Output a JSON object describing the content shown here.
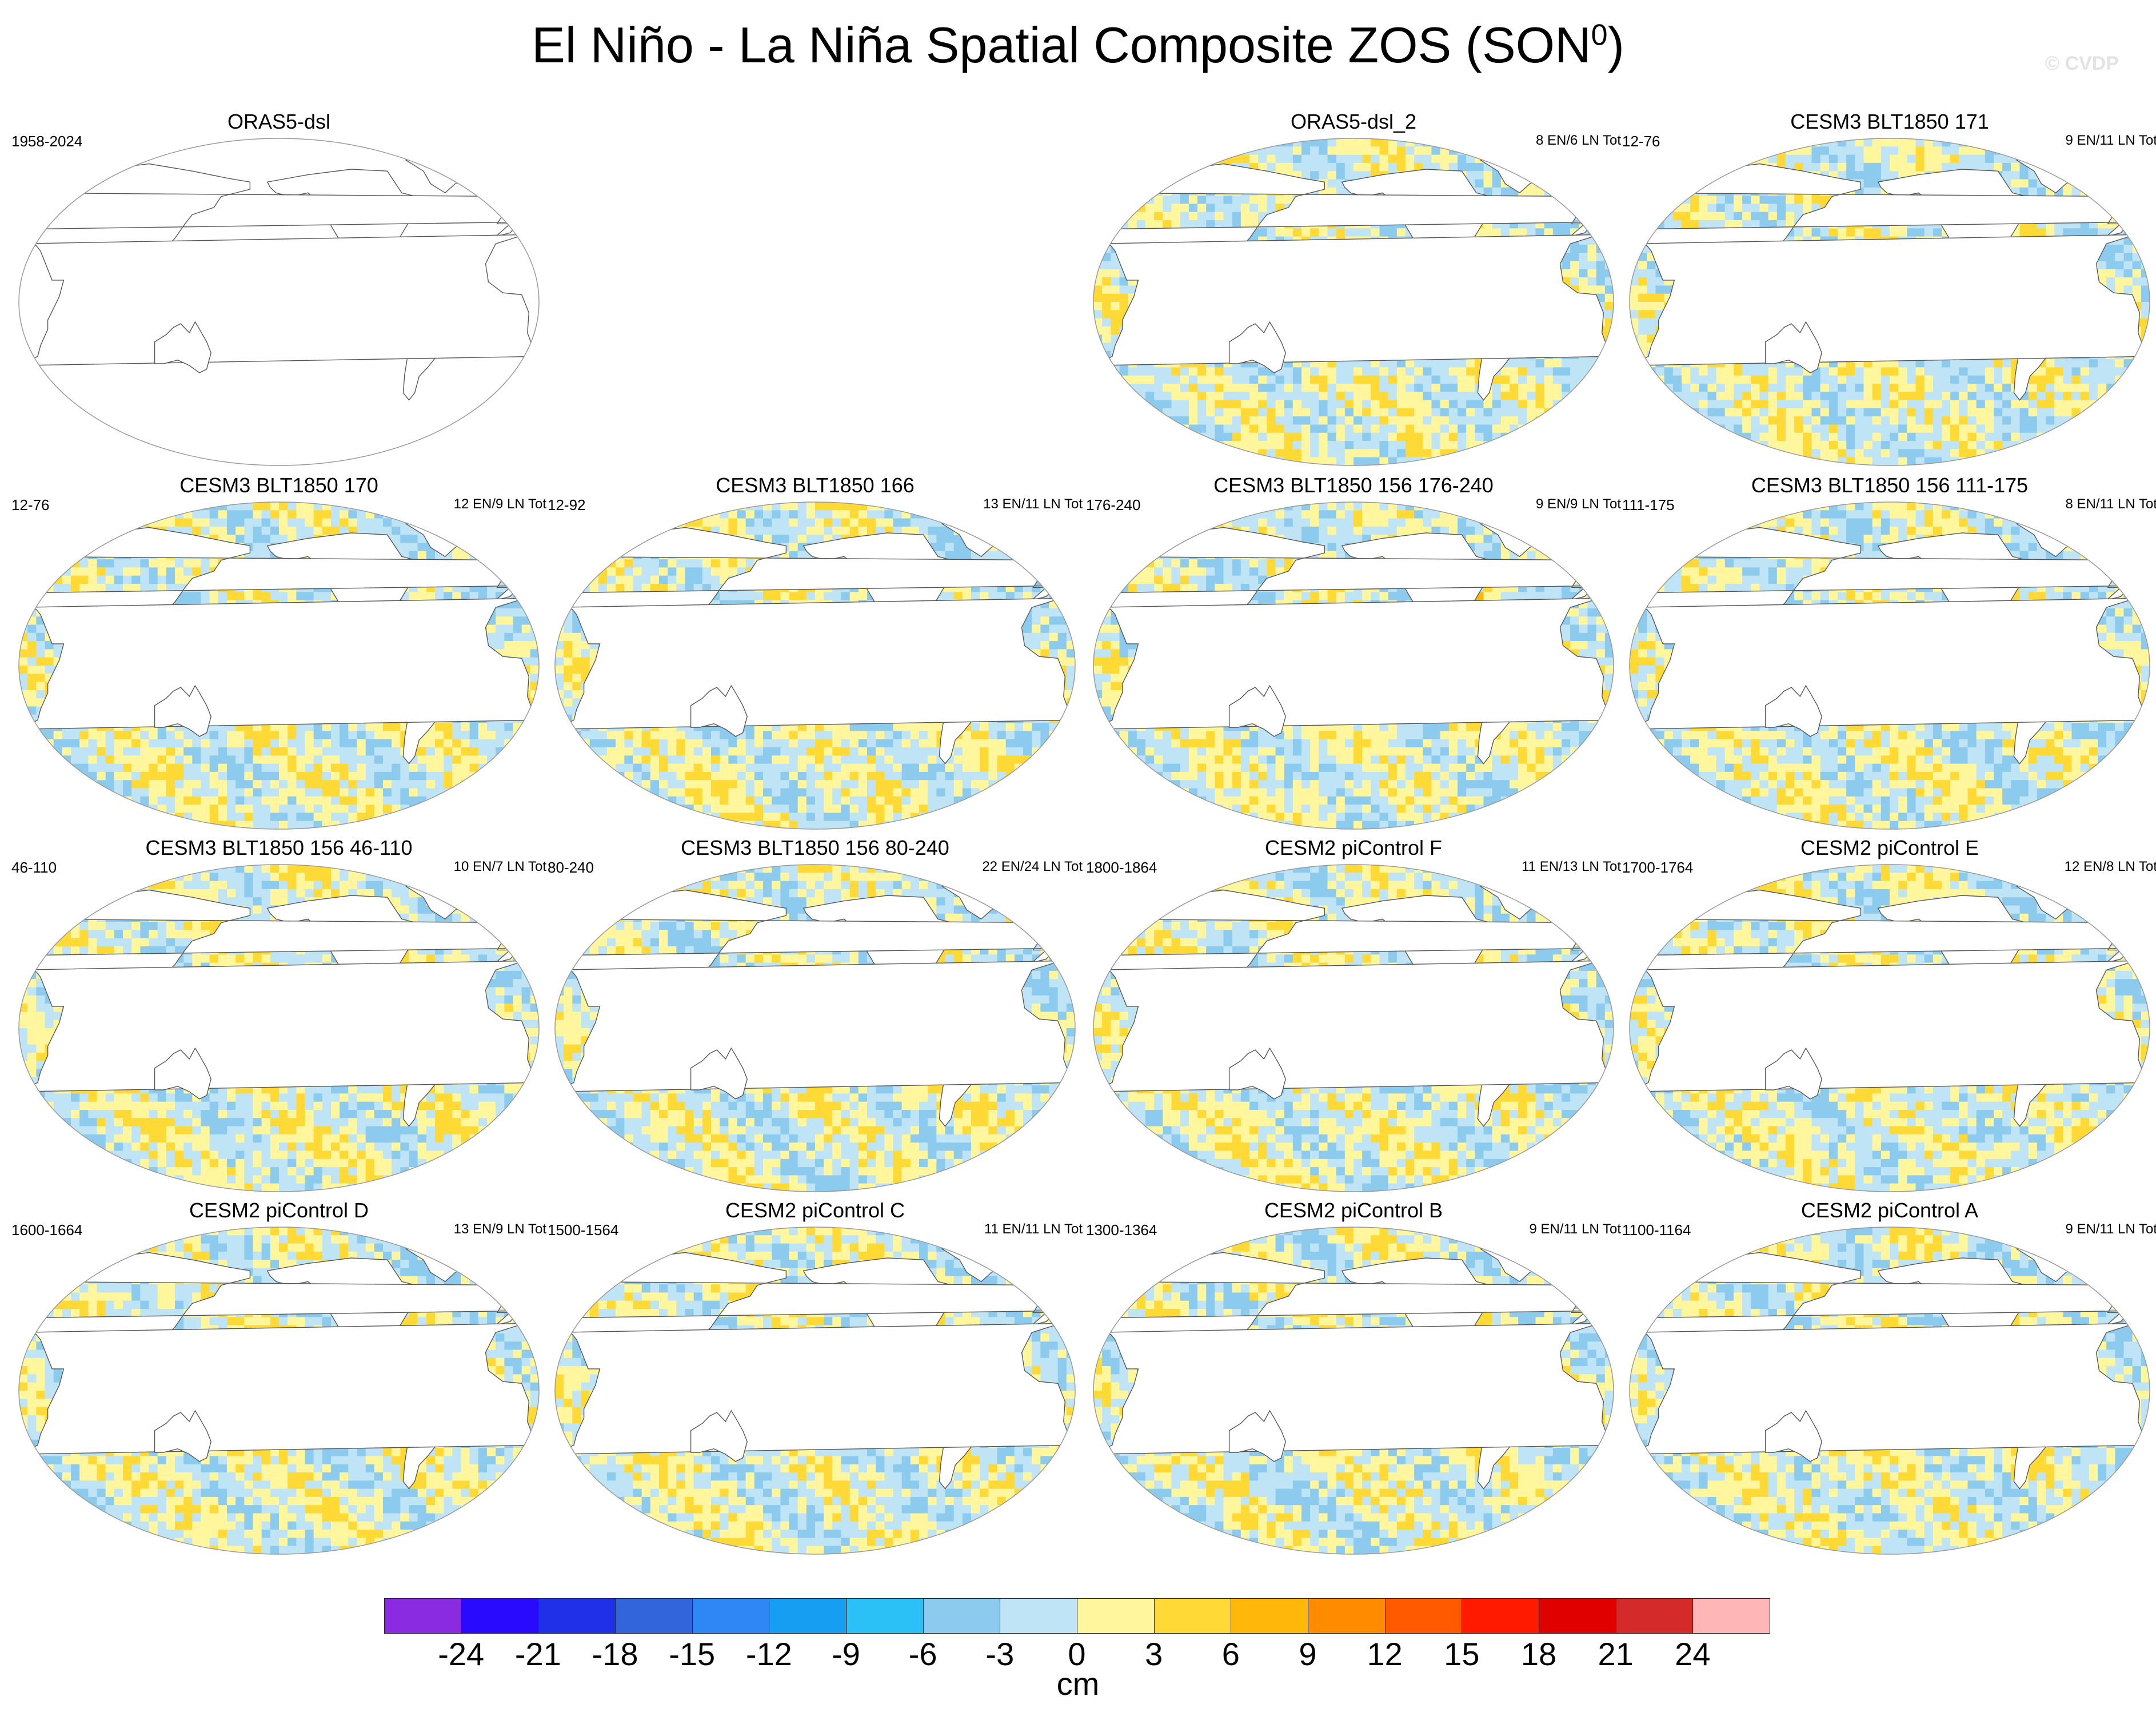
{
  "title": {
    "text": "El Niño - La Niña Spatial Composite ZOS (SON",
    "superscript": "0",
    "close": ")"
  },
  "watermark": "© CVDP",
  "colorbar": {
    "units": "cm",
    "labels": [
      "-24",
      "-21",
      "-18",
      "-15",
      "-12",
      "-9",
      "-6",
      "-3",
      "0",
      "3",
      "6",
      "9",
      "12",
      "15",
      "18",
      "21",
      "24"
    ],
    "colors": [
      "#8a2be2",
      "#2a0aff",
      "#2030e8",
      "#3264dc",
      "#2f86f5",
      "#159ef2",
      "#2bc0f6",
      "#8ccbee",
      "#bfe4f6",
      "#fff69d",
      "#ffda37",
      "#ffb70a",
      "#ff8c00",
      "#ff5a00",
      "#ff1a00",
      "#e00000",
      "#d42a2a",
      "#ffb6b6"
    ]
  },
  "panels": [
    {
      "title": "ORAS5-dsl",
      "years": "1958-2024",
      "count": "",
      "empty": true
    },
    {
      "title": "ORAS5-dsl_2",
      "years": "",
      "count": "8 EN/6 LN Tot",
      "empty": false,
      "amp": 1.2,
      "seed": 2
    },
    {
      "title": "CESM3 BLT1850 171",
      "years": "12-76",
      "count": "9 EN/11 LN Tot",
      "empty": false,
      "amp": 0.7,
      "seed": 3
    },
    {
      "title": "CESM3 BLT1850 170",
      "years": "12-76",
      "count": "12 EN/9 LN Tot",
      "empty": false,
      "amp": 0.75,
      "seed": 4
    },
    {
      "title": "CESM3 BLT1850 166",
      "years": "12-92",
      "count": "13 EN/11 LN Tot",
      "empty": false,
      "amp": 0.65,
      "seed": 5
    },
    {
      "title": "CESM3 BLT1850 156 176-240",
      "years": "176-240",
      "count": "9 EN/9 LN Tot",
      "empty": false,
      "amp": 0.75,
      "seed": 6
    },
    {
      "title": "CESM3 BLT1850 156 111-175",
      "years": "111-175",
      "count": "8 EN/11 LN Tot",
      "empty": false,
      "amp": 0.65,
      "seed": 7
    },
    {
      "title": "CESM3 BLT1850 156 46-110",
      "years": "46-110",
      "count": "10 EN/7 LN Tot",
      "empty": false,
      "amp": 1.05,
      "seed": 8
    },
    {
      "title": "CESM3 BLT1850 156 80-240",
      "years": "80-240",
      "count": "22 EN/24 LN Tot",
      "empty": false,
      "amp": 0.85,
      "seed": 9
    },
    {
      "title": "CESM2 piControl F",
      "years": "1800-1864",
      "count": "11 EN/13 LN Tot",
      "empty": false,
      "amp": 0.95,
      "seed": 10
    },
    {
      "title": "CESM2 piControl E",
      "years": "1700-1764",
      "count": "12 EN/8 LN Tot",
      "empty": false,
      "amp": 1.05,
      "seed": 11
    },
    {
      "title": "CESM2 piControl D",
      "years": "1600-1664",
      "count": "13 EN/9 LN Tot",
      "empty": false,
      "amp": 0.95,
      "seed": 12
    },
    {
      "title": "CESM2 piControl C",
      "years": "1500-1564",
      "count": "11 EN/11 LN Tot",
      "empty": false,
      "amp": 1.2,
      "seed": 13
    },
    {
      "title": "CESM2 piControl B",
      "years": "1300-1364",
      "count": "9 EN/11 LN Tot",
      "empty": false,
      "amp": 0.95,
      "seed": 14
    },
    {
      "title": "CESM2 piControl A",
      "years": "1100-1164",
      "count": "9 EN/11 LN Tot",
      "empty": false,
      "amp": 0.95,
      "seed": 15
    }
  ]
}
